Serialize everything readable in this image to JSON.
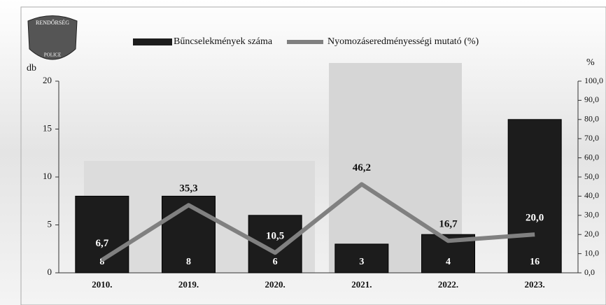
{
  "chart_data": {
    "type": "bar_line",
    "logo": {
      "top": "RENDŐRSÉG",
      "bottom": "POLICE"
    },
    "y_label": "db",
    "y2_label": "%",
    "categories": [
      "2010.",
      "2019.",
      "2020.",
      "2021.",
      "2022.",
      "2023."
    ],
    "series": [
      {
        "name": "Bűncselekmények száma",
        "color": "#1c1c1c",
        "type": "bar",
        "values": [
          8,
          8,
          6,
          3,
          4,
          16
        ]
      },
      {
        "name": "Nyomozáseredményességi mutató (%)",
        "color": "#808080",
        "type": "line",
        "axis": "y2",
        "values": [
          6.7,
          35.3,
          10.5,
          46.2,
          16.7,
          20.0
        ],
        "value_labels": [
          "6,7",
          "35,3",
          "10,5",
          "46,2",
          "16,7",
          "20,0"
        ]
      }
    ],
    "ylim": [
      0,
      20
    ],
    "yticks": [
      0,
      5,
      10,
      15,
      20
    ],
    "y2lim": [
      0,
      100
    ],
    "y2ticks": [
      {
        "value": 0,
        "label": "0,0"
      },
      {
        "value": 10,
        "label": "10,0"
      },
      {
        "value": 20,
        "label": "20,0"
      },
      {
        "value": 30,
        "label": "30,0"
      },
      {
        "value": 40,
        "label": "40,0"
      },
      {
        "value": 50,
        "label": "50,0"
      },
      {
        "value": 60,
        "label": "60,0"
      },
      {
        "value": 70,
        "label": "70,0"
      },
      {
        "value": 80,
        "label": "80,0"
      },
      {
        "value": 90,
        "label": "90,0"
      },
      {
        "value": 100,
        "label": "100,0"
      }
    ]
  }
}
